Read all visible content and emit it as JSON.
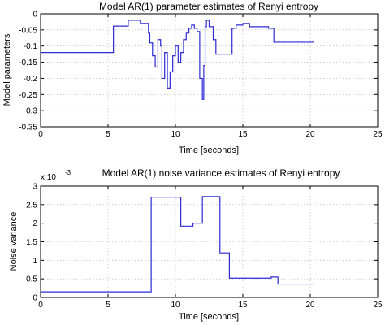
{
  "colors": {
    "series": "#2b2bd6"
  },
  "chart_data": [
    {
      "type": "line",
      "title": "Model AR(1) parameter estimates of Renyi entropy",
      "xlabel": "Time [seconds]",
      "ylabel": "Model parameters",
      "xlim": [
        0,
        25
      ],
      "ylim": [
        -0.35,
        0
      ],
      "xticks": [
        "0",
        "5",
        "10",
        "15",
        "20",
        "25"
      ],
      "yticks": [
        "0",
        "-0.05",
        "-0.1",
        "-0.15",
        "-0.2",
        "-0.25",
        "-0.3",
        "-0.35"
      ],
      "grid": true,
      "line_style": "step",
      "series": [
        {
          "x": [
            0,
            5.2,
            5.4,
            6.3,
            6.5,
            7.2,
            7.4,
            7.8,
            8.0,
            8.1,
            8.3,
            8.5,
            8.7,
            8.9,
            9.0,
            9.2,
            9.4,
            9.6,
            9.8,
            10.0,
            10.2,
            10.4,
            10.6,
            10.8,
            11.0,
            11.2,
            11.4,
            11.6,
            11.8,
            12.0,
            12.1,
            12.2,
            12.3,
            12.5,
            12.8,
            13.0,
            13.3,
            13.7,
            14.2,
            14.5,
            15.0,
            15.5,
            16.2,
            16.9,
            17.1,
            17.3,
            18.5,
            19.2,
            19.5,
            20.3
          ],
          "y": [
            -0.12,
            -0.12,
            -0.038,
            -0.038,
            -0.02,
            -0.02,
            -0.03,
            -0.03,
            -0.06,
            -0.09,
            -0.13,
            -0.165,
            -0.08,
            -0.1,
            -0.2,
            -0.12,
            -0.23,
            -0.18,
            -0.13,
            -0.1,
            -0.15,
            -0.12,
            -0.08,
            -0.06,
            -0.045,
            -0.035,
            -0.045,
            -0.055,
            -0.2,
            -0.265,
            -0.16,
            -0.04,
            -0.02,
            -0.04,
            -0.08,
            -0.125,
            -0.125,
            -0.125,
            -0.045,
            -0.035,
            -0.03,
            -0.04,
            -0.04,
            -0.045,
            -0.045,
            -0.088,
            -0.088,
            -0.088,
            -0.088,
            -0.088
          ]
        }
      ]
    },
    {
      "type": "line",
      "title": "Model AR(1) noise variance estimates of Renyi entropy",
      "xlabel": "Time [seconds]",
      "ylabel": "Noise variance",
      "y_multiplier_label": "x 10",
      "y_multiplier_exponent": "-3",
      "xlim": [
        0,
        25
      ],
      "ylim": [
        0,
        3
      ],
      "xticks": [
        "0",
        "5",
        "10",
        "15",
        "20",
        "25"
      ],
      "yticks": [
        "3",
        "2.5",
        "2",
        "1.5",
        "1",
        "0.5",
        "0"
      ],
      "grid": true,
      "line_style": "step",
      "series": [
        {
          "x": [
            0,
            8.2,
            10.4,
            11.3,
            12.0,
            13.3,
            14.0,
            16.5,
            17.1,
            17.6,
            20.3
          ],
          "y": [
            0.15,
            2.7,
            1.92,
            2.0,
            2.72,
            1.2,
            0.52,
            0.52,
            0.55,
            0.36,
            0.36
          ]
        }
      ]
    }
  ]
}
